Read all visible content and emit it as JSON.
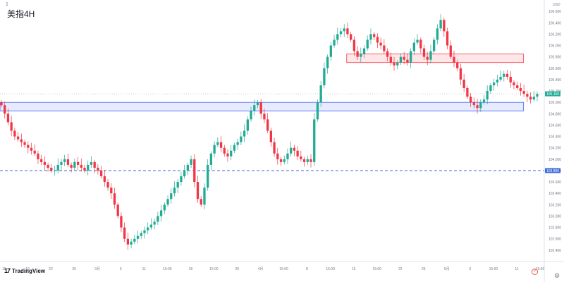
{
  "title": "美指4H",
  "corner_label": "1",
  "currency_label": "USD",
  "branding": {
    "name": "TradingView",
    "mark": "17"
  },
  "icons": {
    "timezone": "timezone-icon",
    "settings": "gear-icon",
    "tz_glyph": "P"
  },
  "colors": {
    "up": "#22ab94",
    "down": "#f23645",
    "zone_red": "#f23645",
    "zone_blue": "#3d5cf5",
    "dashed": "#3d6ad6"
  },
  "chart_data": {
    "type": "candlestick",
    "y_range": [
      102.2,
      106.8
    ],
    "y_ticks": [
      102.4,
      102.6,
      102.8,
      103.0,
      103.2,
      103.4,
      103.6,
      103.8,
      104.0,
      104.2,
      104.4,
      104.6,
      104.8,
      105.0,
      105.2,
      105.4,
      105.6,
      105.8,
      106.0,
      106.2,
      106.4,
      106.6
    ],
    "x_tick_labels": [
      "15",
      "19",
      "22",
      "26",
      "3月",
      "6",
      "11",
      "15:00",
      "18",
      "15:00",
      "25",
      "4月",
      "15:00",
      "8",
      "15:00",
      "15",
      "15:00",
      "22",
      "25",
      "5月",
      "6",
      "15:00",
      "11",
      "15:00"
    ],
    "close_series": [
      104.95,
      104.8,
      104.65,
      104.5,
      104.4,
      104.35,
      104.3,
      104.25,
      104.2,
      104.15,
      104.1,
      104.0,
      103.95,
      103.9,
      103.85,
      103.8,
      103.8,
      103.9,
      103.95,
      104.0,
      103.9,
      103.85,
      103.95,
      103.9,
      103.85,
      103.8,
      103.9,
      103.95,
      103.85,
      103.8,
      103.7,
      103.6,
      103.5,
      103.4,
      103.2,
      103.0,
      102.8,
      102.6,
      102.5,
      102.55,
      102.6,
      102.65,
      102.7,
      102.75,
      102.8,
      102.85,
      102.9,
      103.0,
      103.1,
      103.2,
      103.3,
      103.4,
      103.5,
      103.6,
      103.7,
      103.8,
      103.9,
      104.0,
      103.6,
      103.3,
      103.2,
      103.5,
      103.9,
      104.1,
      104.25,
      104.3,
      104.2,
      104.1,
      104.05,
      104.15,
      104.25,
      104.3,
      104.4,
      104.5,
      104.7,
      104.85,
      104.95,
      105.0,
      104.8,
      104.7,
      104.5,
      104.3,
      104.1,
      104.0,
      103.95,
      104.0,
      104.1,
      104.2,
      104.15,
      104.05,
      104.0,
      103.95,
      104.0,
      103.95,
      104.7,
      105.0,
      105.3,
      105.6,
      105.8,
      106.0,
      106.1,
      106.2,
      106.25,
      106.3,
      106.2,
      106.1,
      105.9,
      105.8,
      105.85,
      105.95,
      106.1,
      106.2,
      106.15,
      106.05,
      106.0,
      105.9,
      105.8,
      105.7,
      105.65,
      105.7,
      105.8,
      105.75,
      105.7,
      105.9,
      106.05,
      106.1,
      105.95,
      105.8,
      105.75,
      105.9,
      106.1,
      106.3,
      106.45,
      106.25,
      106.0,
      105.8,
      105.7,
      105.6,
      105.4,
      105.25,
      105.1,
      105.0,
      104.95,
      104.9,
      105.0,
      105.05,
      105.2,
      105.3,
      105.35,
      105.4,
      105.45,
      105.5,
      105.45,
      105.35,
      105.3,
      105.25,
      105.2,
      105.15,
      105.1,
      105.05,
      105.1,
      105.15
    ],
    "current_price": 105.15,
    "horizontal_level": 103.8,
    "zones": [
      {
        "name": "resistance-zone",
        "y_low": 105.7,
        "y_high": 105.85,
        "x_start": 0.637,
        "x_end": 0.962
      },
      {
        "name": "support-zone",
        "y_low": 104.85,
        "y_high": 105.0,
        "x_start": 0.0,
        "x_end": 0.962
      }
    ]
  }
}
